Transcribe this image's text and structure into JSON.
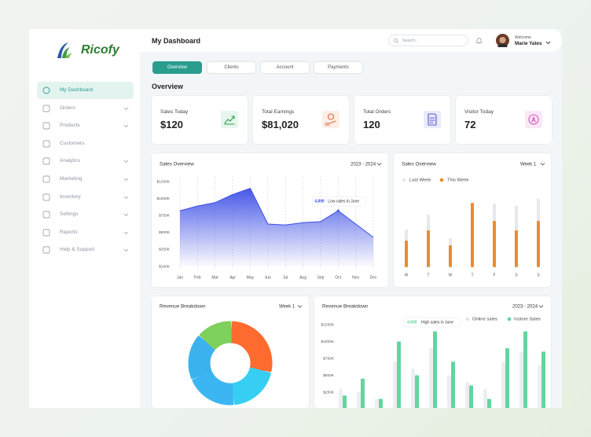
{
  "brand": "Ricofy",
  "sidebar": [
    "My Dashboard",
    "Orders",
    "Products",
    "Customers",
    "Analytics",
    "Marketing",
    "Inventory",
    "Settings",
    "Reports",
    "Help & Support"
  ],
  "header": {
    "title": "My Dashboard",
    "search": "Search...",
    "welcome": "Welcome",
    "user": "Marie Yates"
  },
  "tabs": [
    "Overview",
    "Clients",
    "Account",
    "Payments"
  ],
  "section": "Overview",
  "stats": [
    {
      "label": "Sales Today",
      "value": "$120"
    },
    {
      "label": "Total Earnings",
      "value": "$81,020"
    },
    {
      "label": "Total Orders",
      "value": "120"
    },
    {
      "label": "Visitor Today",
      "value": "72"
    }
  ],
  "chart_data": [
    {
      "type": "area",
      "title": "Sales Overview",
      "period": "2023 - 2024",
      "color": "#3d4fe6",
      "categories": [
        "Jan",
        "Feb",
        "Mar",
        "Apr",
        "May",
        "Jun",
        "Jul",
        "Aug",
        "Sep",
        "Oct",
        "Nov",
        "Dec"
      ],
      "values": [
        820,
        890,
        940,
        1060,
        1150,
        625,
        610,
        645,
        660,
        820,
        625,
        430
      ],
      "ylim": [
        100,
        1250
      ],
      "yticks": [
        {
          "value": 100,
          "label": "$100K"
        },
        {
          "value": 250,
          "label": "$250K"
        },
        {
          "value": 500,
          "label": "$500K"
        },
        {
          "value": 750,
          "label": "$750K"
        },
        {
          "value": 1000,
          "label": "$1000K"
        },
        {
          "value": 1250,
          "label": "$1250K"
        }
      ],
      "annotation": {
        "value": "4,890",
        "text": "Low sales in June"
      }
    },
    {
      "type": "bar",
      "title": "Sales Overview",
      "period": "Week 1",
      "categories": [
        "M",
        "T",
        "W",
        "T",
        "F",
        "S",
        "S"
      ],
      "series": [
        {
          "name": "Last Week",
          "color": "#e6e8ee",
          "values": [
            48,
            67,
            37,
            82,
            81,
            78,
            87
          ]
        },
        {
          "name": "This Week",
          "color": "#ef8a2c",
          "values": [
            34,
            47,
            28,
            82,
            59,
            47,
            59
          ]
        }
      ]
    },
    {
      "type": "donut",
      "title": "Revenue Breakdown",
      "period": "Week 1",
      "values": [
        28,
        20,
        20,
        18,
        14
      ],
      "colors": [
        "#ff6a2e",
        "#37cef3",
        "#3cb6f3",
        "#3bb2ee",
        "#7fd05c"
      ]
    },
    {
      "type": "bar",
      "title": "Revenue Breakdown",
      "period": "2023 - 2024",
      "categories": [
        null,
        null,
        null,
        null,
        null,
        null,
        null,
        null,
        null,
        null,
        null,
        null
      ],
      "series": [
        {
          "name": "Online sales",
          "color": "#eceef3",
          "values": [
            300,
            250,
            150,
            700,
            600,
            900,
            500,
            400,
            300,
            700,
            850,
            650
          ]
        },
        {
          "name": "Instore Sales",
          "color": "#63d59f",
          "values": [
            200,
            450,
            150,
            1000,
            500,
            1150,
            700,
            350,
            150,
            900,
            1150,
            850
          ]
        }
      ],
      "ylim": [
        0,
        1250
      ],
      "yticks": [
        {
          "value": 250,
          "label": "$250K"
        },
        {
          "value": 500,
          "label": "$500K"
        },
        {
          "value": 750,
          "label": "$750K"
        },
        {
          "value": 1000,
          "label": "$1000K"
        },
        {
          "value": 1250,
          "label": "$1250K"
        }
      ],
      "annotation": {
        "value": "4,890",
        "text": "High sales in June"
      }
    }
  ]
}
